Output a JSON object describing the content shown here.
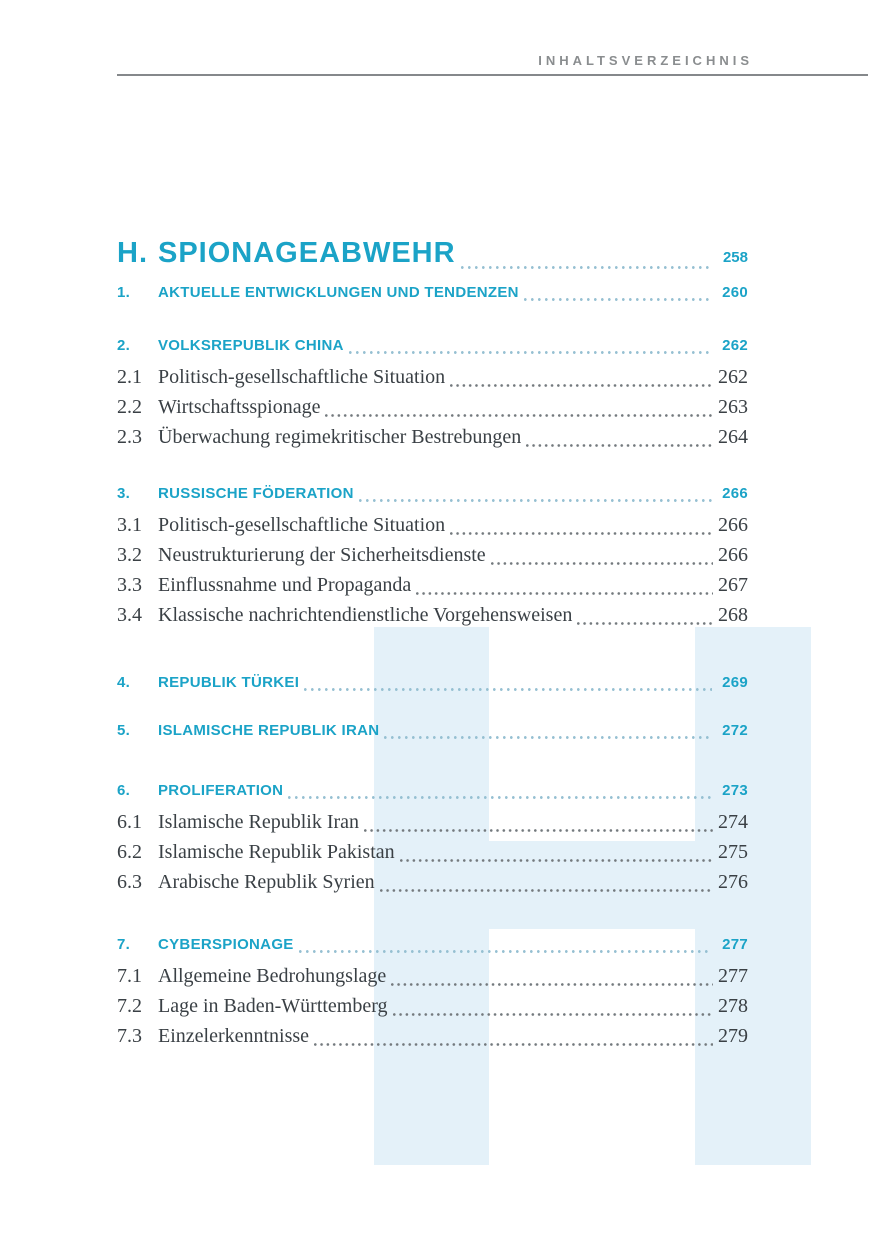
{
  "page": {
    "header": "INHALTSVERZEICHNIS"
  },
  "watermark": {
    "letter": "H",
    "color": "#E4F1F9"
  },
  "colors": {
    "accent_cyan": "#1BA3C7",
    "entry_text": "#3A4045",
    "header_text": "#8A8D8F",
    "rule": "#85888B",
    "leader_dots_gray": "#747A7E",
    "leader_dots_cyan": "#96C0D2"
  },
  "toc": {
    "groups": [
      {
        "rows": [
          {
            "kind": "chapter",
            "num": "H.",
            "title": "SPIONAGEABWEHR",
            "page": "258"
          },
          {
            "kind": "section",
            "num": "1.",
            "title": "AKTUELLE ENTWICKLUNGEN UND TENDENZEN",
            "page": "260"
          }
        ]
      },
      {
        "rows": [
          {
            "kind": "section",
            "num": "2.",
            "title": "VOLKSREPUBLIK CHINA",
            "page": "262"
          },
          {
            "kind": "entry",
            "num": "2.1",
            "title": "Politisch-gesellschaftliche Situation",
            "page": "262"
          },
          {
            "kind": "entry",
            "num": "2.2",
            "title": "Wirtschaftsspionage",
            "page": "263"
          },
          {
            "kind": "entry",
            "num": "2.3",
            "title": "Überwachung regimekritischer Bestrebungen",
            "page": "264"
          }
        ]
      },
      {
        "rows": [
          {
            "kind": "section",
            "num": "3.",
            "title": "RUSSISCHE FÖDERATION",
            "page": "266"
          },
          {
            "kind": "entry",
            "num": "3.1",
            "title": "Politisch-gesellschaftliche Situation",
            "page": "266"
          },
          {
            "kind": "entry",
            "num": "3.2",
            "title": "Neustrukturierung der Sicherheitsdienste",
            "page": "266"
          },
          {
            "kind": "entry",
            "num": "3.3",
            "title": "Einflussnahme und Propaganda",
            "page": "267"
          },
          {
            "kind": "entry",
            "num": "3.4",
            "title": "Klassische nachrichtendienstliche Vorgehensweisen",
            "page": "268"
          }
        ]
      },
      {
        "rows": [
          {
            "kind": "section",
            "num": "4.",
            "title": "REPUBLIK TÜRKEI",
            "page": "269"
          }
        ]
      },
      {
        "rows": [
          {
            "kind": "section",
            "num": "5.",
            "title": "ISLAMISCHE REPUBLIK IRAN",
            "page": "272"
          }
        ]
      },
      {
        "rows": [
          {
            "kind": "section",
            "num": "6.",
            "title": "PROLIFERATION",
            "page": "273"
          },
          {
            "kind": "entry",
            "num": "6.1",
            "title": "Islamische Republik Iran",
            "page": "274"
          },
          {
            "kind": "entry",
            "num": "6.2",
            "title": "Islamische Republik Pakistan",
            "page": "275"
          },
          {
            "kind": "entry",
            "num": "6.3",
            "title": "Arabische Republik Syrien",
            "page": "276"
          }
        ]
      },
      {
        "rows": [
          {
            "kind": "section",
            "num": "7.",
            "title": "CYBERSPIONAGE",
            "page": "277"
          },
          {
            "kind": "entry",
            "num": "7.1",
            "title": "Allgemeine Bedrohungslage",
            "page": "277"
          },
          {
            "kind": "entry",
            "num": "7.2",
            "title": "Lage in Baden-Württemberg",
            "page": "278"
          },
          {
            "kind": "entry",
            "num": "7.3",
            "title": "Einzelerkenntnisse",
            "page": "279"
          }
        ]
      }
    ]
  }
}
